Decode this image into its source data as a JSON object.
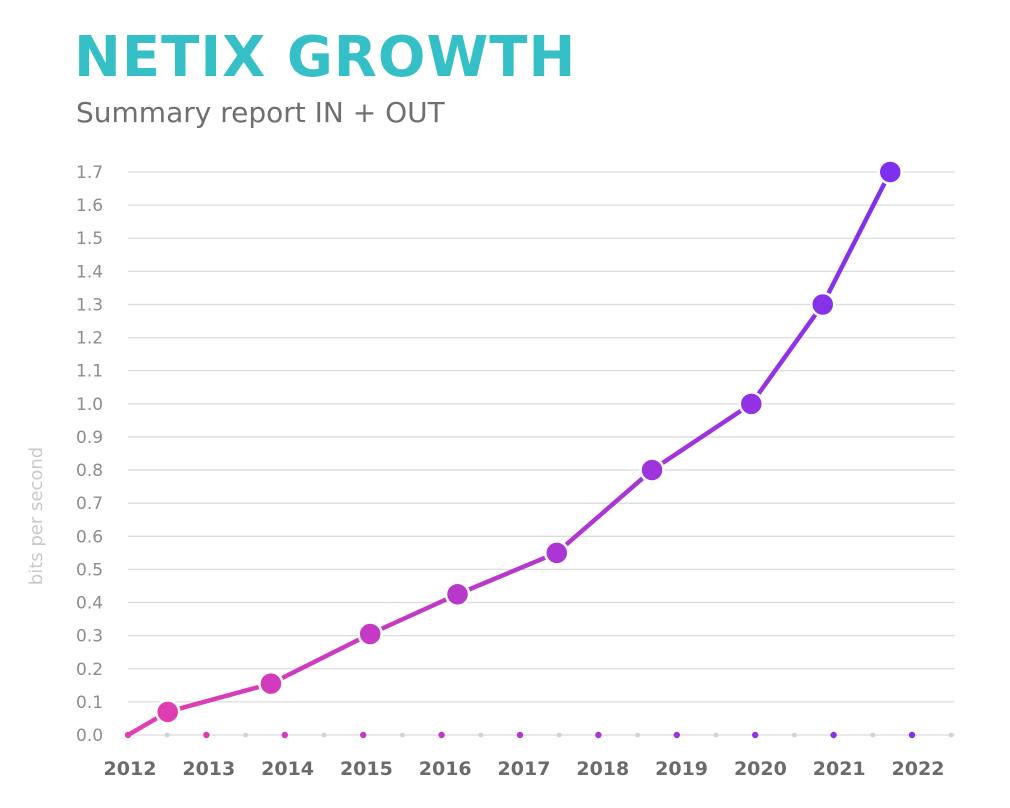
{
  "header": {
    "title": "NETIX GROWTH",
    "subtitle": "Summary report IN + OUT"
  },
  "chart_data": {
    "type": "line",
    "title": "NETIX GROWTH",
    "subtitle": "Summary report IN + OUT",
    "ylabel": "bits per second",
    "xlabel": "",
    "ylim": [
      0,
      1.7
    ],
    "yticks": [
      "0.0",
      "0.1",
      "0.2",
      "0.3",
      "0.4",
      "0.5",
      "0.6",
      "0.7",
      "0.8",
      "0.9",
      "1.0",
      "1.1",
      "1.2",
      "1.3",
      "1.4",
      "1.5",
      "1.6",
      "1.7"
    ],
    "x_tick_labels": [
      "2012",
      "2013",
      "2014",
      "2015",
      "2016",
      "2017",
      "2018",
      "2019",
      "2020",
      "2021",
      "2022"
    ],
    "xlim": [
      2012,
      2022
    ],
    "grid": true,
    "legend": "none",
    "series": [
      {
        "x": [
          2012.0,
          2012.5,
          2013.8,
          2015.05,
          2016.15,
          2017.4,
          2018.6,
          2019.85,
          2020.75,
          2021.6
        ],
        "y": [
          0.0,
          0.07,
          0.155,
          0.305,
          0.425,
          0.55,
          0.8,
          1.0,
          1.3,
          1.7
        ]
      }
    ],
    "colors": {
      "line_start": "#e43fb0",
      "line_end": "#7b2ff2",
      "title": "#35bfc7",
      "subtitle": "#6f6f6f",
      "grid": "#dcdcdc"
    }
  }
}
